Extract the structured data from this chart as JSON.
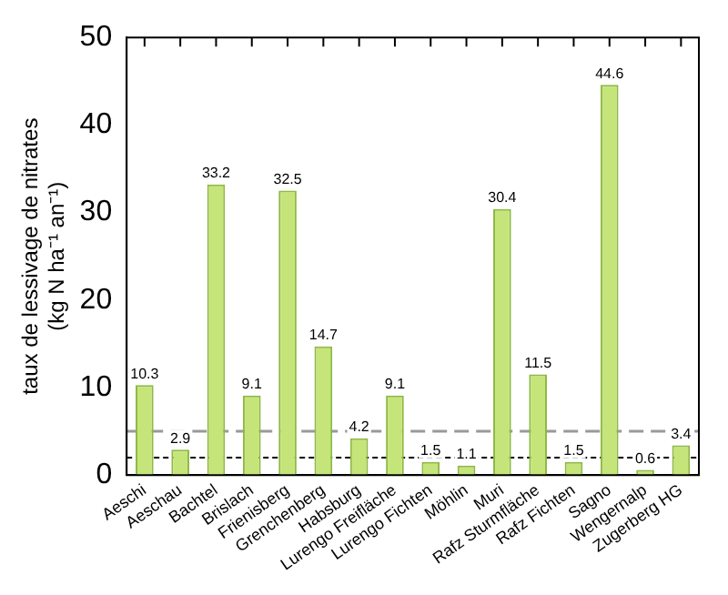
{
  "chart_data": {
    "type": "bar",
    "ylabel": "taux de lessivage de nitrates\n(kg N ha⁻¹ an⁻¹)",
    "categories": [
      "Aeschi",
      "Aeschau",
      "Bachtel",
      "Brislach",
      "Frienisberg",
      "Grenchenberg",
      "Habsburg",
      "Lurengo Freifläche",
      "Lurengo Fichten",
      "Möhlin",
      "Muri",
      "Rafz Sturmfläche",
      "Rafz Fichten",
      "Sagno",
      "Wengernalp",
      "Zugerberg HG"
    ],
    "values": [
      10.3,
      2.9,
      33.2,
      9.1,
      32.5,
      14.7,
      4.2,
      9.1,
      1.5,
      1.1,
      30.4,
      11.5,
      1.5,
      44.6,
      0.6,
      3.4
    ],
    "color": "#c5e57a",
    "data_labels": true,
    "ylim": [
      0,
      50
    ],
    "yticks": [
      0,
      10,
      20,
      30,
      40,
      50
    ],
    "grid": false,
    "legend": false,
    "ref_lines": [
      {
        "axis": "y",
        "value": 5,
        "color": "#999999",
        "line_style": "dashed"
      },
      {
        "axis": "y",
        "value": 2,
        "color": "#000000",
        "line_style": "dotted"
      }
    ]
  }
}
